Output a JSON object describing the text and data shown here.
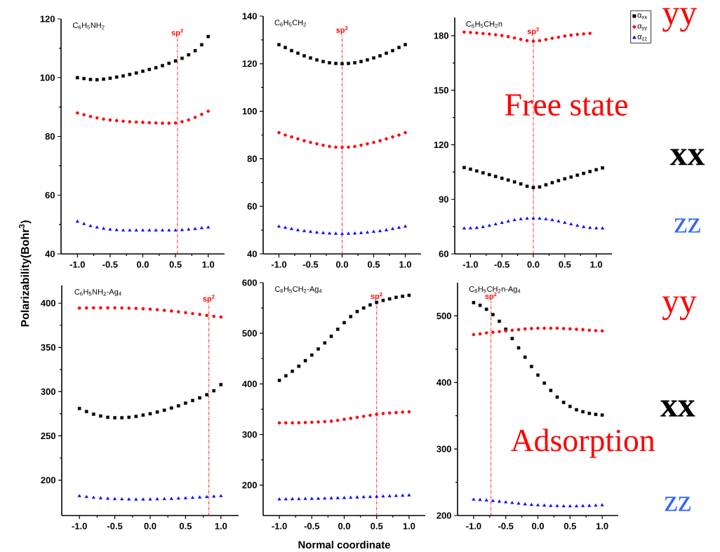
{
  "chart_data": [
    {
      "type": "scatter",
      "title": "C$_{6}$H$_{5}$NH$_{2}$",
      "ylabel": "Polarizability(Bohr$^{3}$)",
      "x": [
        -1.0,
        -0.9,
        -0.8,
        -0.7,
        -0.6,
        -0.5,
        -0.4,
        -0.3,
        -0.2,
        -0.1,
        0.0,
        0.1,
        0.2,
        0.3,
        0.4,
        0.5,
        0.6,
        0.7,
        0.8,
        0.9,
        1.0
      ],
      "series": [
        {
          "color": "#000000",
          "marker": "square",
          "values": [
            100,
            99.7,
            99.4,
            99.3,
            99.5,
            99.8,
            100.2,
            100.6,
            101.1,
            101.6,
            102.2,
            102.8,
            103.4,
            104.1,
            104.9,
            105.7,
            106.6,
            107.8,
            109.2,
            111.2,
            114
          ]
        },
        {
          "color": "#ff0000",
          "marker": "circle",
          "values": [
            88,
            87.4,
            86.8,
            86.3,
            85.9,
            85.6,
            85.4,
            85.2,
            85.0,
            84.9,
            84.8,
            84.7,
            84.6,
            84.5,
            84.5,
            84.6,
            85.0,
            85.6,
            86.5,
            87.5,
            88.6
          ]
        },
        {
          "color": "#0000ff",
          "marker": "triangle",
          "values": [
            51,
            50.2,
            49.5,
            49,
            48.6,
            48.3,
            48.1,
            48,
            48,
            48,
            48,
            48,
            48,
            48,
            48,
            48,
            48.1,
            48.3,
            48.5,
            48.8,
            49
          ]
        }
      ],
      "xlim": [
        -1.25,
        1.25
      ],
      "ylim": [
        40,
        120
      ],
      "xticks": [
        {
          "value": -1,
          "label": "-1.0"
        },
        {
          "value": -0.5,
          "label": "-0.5"
        },
        {
          "value": 0,
          "label": "0.0"
        },
        {
          "value": 0.5,
          "label": "0.5"
        },
        {
          "value": 1,
          "label": "1.0"
        }
      ],
      "yticks": [
        40,
        60,
        80,
        100,
        120
      ],
      "ref_lines": [
        {
          "axis": "x",
          "value": 0.53,
          "label": "sp$^{2}$",
          "color": "#ff0000",
          "line_style": "dashed"
        }
      ]
    },
    {
      "type": "scatter",
      "title": "C$_{6}$H$_{5}$CH$_{2}$",
      "x": [
        -1.0,
        -0.9,
        -0.8,
        -0.7,
        -0.6,
        -0.5,
        -0.4,
        -0.3,
        -0.2,
        -0.1,
        0.0,
        0.1,
        0.2,
        0.3,
        0.4,
        0.5,
        0.6,
        0.7,
        0.8,
        0.9,
        1.0
      ],
      "series": [
        {
          "color": "#000000",
          "marker": "square",
          "values": [
            128,
            126.8,
            125.5,
            124.4,
            123.3,
            122.4,
            121.6,
            120.9,
            120.4,
            120.1,
            120,
            120.1,
            120.4,
            120.9,
            121.6,
            122.4,
            123.3,
            124.4,
            125.5,
            126.8,
            128
          ]
        },
        {
          "color": "#ff0000",
          "marker": "circle",
          "values": [
            91,
            90,
            89.2,
            88.4,
            87.6,
            86.9,
            86.3,
            85.7,
            85.2,
            84.9,
            84.8,
            84.9,
            85.2,
            85.7,
            86.3,
            86.9,
            87.6,
            88.4,
            89.2,
            90,
            91
          ]
        },
        {
          "color": "#0000ff",
          "marker": "triangle",
          "values": [
            51.5,
            51,
            50.5,
            50,
            49.6,
            49.3,
            49,
            48.8,
            48.6,
            48.5,
            48.4,
            48.5,
            48.6,
            48.8,
            49,
            49.3,
            49.6,
            50,
            50.5,
            51,
            51.5
          ]
        }
      ],
      "xlim": [
        -1.25,
        1.25
      ],
      "ylim": [
        40,
        140
      ],
      "xticks": [
        {
          "value": -1,
          "label": "-1.0"
        },
        {
          "value": -0.5,
          "label": "-0.5"
        },
        {
          "value": 0,
          "label": "0.0"
        },
        {
          "value": 0.5,
          "label": "0.5"
        },
        {
          "value": 1,
          "label": "1.0"
        }
      ],
      "yticks": [
        40,
        60,
        80,
        100,
        120,
        140
      ],
      "ref_lines": [
        {
          "axis": "x",
          "value": 0,
          "label": "sp$^{2}$",
          "color": "#ff0000",
          "line_style": "dashed"
        }
      ]
    },
    {
      "type": "scatter",
      "title": "C$_{6}$H$_{5}$CH$_{2}$n",
      "legend": "top right",
      "annotations": [
        "Free state",
        "yy",
        "xx",
        "zz"
      ],
      "x": [
        -1.1,
        -1.0,
        -0.9,
        -0.8,
        -0.7,
        -0.6,
        -0.5,
        -0.4,
        -0.3,
        -0.2,
        -0.1,
        0.0,
        0.1,
        0.2,
        0.3,
        0.4,
        0.5,
        0.6,
        0.7,
        0.8,
        0.9,
        1.0,
        1.1
      ],
      "series": [
        {
          "name": "α$_{xx}$",
          "color": "#000000",
          "marker": "square",
          "values": [
            107.5,
            106.6,
            105.6,
            104.6,
            103.6,
            102.6,
            101.6,
            100.6,
            99.6,
            98.5,
            97.2,
            96.5,
            96.8,
            98,
            99.2,
            100.3,
            101.3,
            102.3,
            103.3,
            104.3,
            105.3,
            106.3,
            107.3
          ]
        },
        {
          "name": "α$_{yy}$",
          "color": "#ff0000",
          "marker": "circle",
          "values": [
            182,
            181.8,
            181.5,
            181.2,
            180.9,
            180.5,
            180.1,
            179.5,
            178.8,
            178,
            177.3,
            177,
            177.3,
            177.9,
            178.6,
            179.2,
            179.8,
            180.3,
            180.7,
            181,
            181.3,
            null,
            null
          ]
        },
        {
          "name": "α$_{zz}$",
          "color": "#0000ff",
          "marker": "triangle",
          "values": [
            74,
            74.1,
            74.3,
            74.8,
            75.5,
            76.3,
            77.1,
            77.9,
            78.6,
            79.1,
            79.4,
            79.5,
            79.4,
            79.1,
            78.6,
            77.9,
            77.1,
            76.3,
            75.5,
            74.8,
            74.3,
            74.1,
            74
          ]
        }
      ],
      "xlim": [
        -1.25,
        1.25
      ],
      "ylim": [
        60,
        190
      ],
      "xticks": [
        {
          "value": -1,
          "label": "-1.0"
        },
        {
          "value": -0.5,
          "label": "-0.5"
        },
        {
          "value": 0,
          "label": "0.0"
        },
        {
          "value": 0.5,
          "label": "0.5"
        },
        {
          "value": 1,
          "label": "1.0"
        }
      ],
      "yticks": [
        60,
        90,
        120,
        150,
        180
      ],
      "ref_lines": [
        {
          "axis": "x",
          "value": 0,
          "label": "sp$^{2}$",
          "color": "#ff0000",
          "line_style": "dashed"
        }
      ]
    },
    {
      "type": "scatter",
      "title": "C$_{6}$H$_{5}$NH$_{2}$-Ag$_{4}$",
      "x": [
        -1.0,
        -0.9,
        -0.8,
        -0.7,
        -0.6,
        -0.5,
        -0.4,
        -0.3,
        -0.2,
        -0.1,
        0.0,
        0.1,
        0.2,
        0.3,
        0.4,
        0.5,
        0.6,
        0.7,
        0.8,
        0.9,
        1.0
      ],
      "series": [
        {
          "color": "#000000",
          "marker": "square",
          "values": [
            281,
            277.5,
            274.5,
            272.5,
            271,
            270.5,
            270.5,
            271,
            272,
            273.5,
            275,
            277,
            279,
            281.5,
            284,
            287,
            290,
            293,
            296.5,
            301,
            308
          ]
        },
        {
          "color": "#ff0000",
          "marker": "circle",
          "values": [
            394.5,
            394.6,
            394.7,
            394.7,
            394.7,
            394.7,
            394.6,
            394.4,
            394.1,
            393.7,
            393.2,
            392.6,
            391.9,
            391.1,
            390.2,
            389.3,
            388.3,
            387.3,
            386.2,
            385.2,
            384.3
          ]
        },
        {
          "color": "#0000ff",
          "marker": "triangle",
          "values": [
            182,
            181,
            180.2,
            179.6,
            179.1,
            178.7,
            178.4,
            178.2,
            178.1,
            178.1,
            178.2,
            178.4,
            178.6,
            178.9,
            179.2,
            179.6,
            180,
            180.5,
            181,
            181.5,
            182
          ]
        }
      ],
      "xlim": [
        -1.25,
        1.25
      ],
      "ylim": [
        160,
        420
      ],
      "xticks": [
        {
          "value": -1,
          "label": "-1.0"
        },
        {
          "value": -0.5,
          "label": "-0.5"
        },
        {
          "value": 0,
          "label": "0.0"
        },
        {
          "value": 0.5,
          "label": "0.5"
        },
        {
          "value": 1,
          "label": "1.0"
        }
      ],
      "yticks": [
        200,
        250,
        300,
        350,
        400
      ],
      "ref_lines": [
        {
          "axis": "x",
          "value": 0.83,
          "label": "sp$^{2}$",
          "color": "#ff0000",
          "line_style": "dashed"
        }
      ]
    },
    {
      "type": "scatter",
      "title": "C$_{6}$H$_{5}$CH$_{2}$-Ag$_{4}$",
      "xlabel": "Normal coordinate",
      "x": [
        -1.0,
        -0.9,
        -0.8,
        -0.7,
        -0.6,
        -0.5,
        -0.4,
        -0.3,
        -0.2,
        -0.1,
        0.0,
        0.1,
        0.2,
        0.3,
        0.4,
        0.5,
        0.6,
        0.7,
        0.8,
        0.9,
        1.0
      ],
      "series": [
        {
          "color": "#000000",
          "marker": "square",
          "values": [
            407,
            416,
            425,
            435,
            446,
            457,
            469,
            481,
            494,
            508,
            521,
            533,
            543,
            550,
            556,
            561,
            565,
            568,
            571,
            573,
            575
          ]
        },
        {
          "color": "#ff0000",
          "marker": "circle",
          "values": [
            323,
            323,
            323,
            323.3,
            323.7,
            324.2,
            324.8,
            325.5,
            326.5,
            328,
            330,
            332,
            334,
            336,
            338,
            340,
            341.5,
            342.5,
            343.5,
            344.2,
            345
          ]
        },
        {
          "color": "#0000ff",
          "marker": "triangle",
          "values": [
            172,
            172.2,
            172.4,
            172.6,
            172.8,
            173,
            173.3,
            173.6,
            174,
            174.4,
            174.8,
            175.3,
            175.8,
            176.3,
            176.8,
            177.3,
            177.8,
            178.3,
            178.8,
            179.3,
            180
          ]
        }
      ],
      "xlim": [
        -1.25,
        1.25
      ],
      "ylim": [
        140,
        600
      ],
      "xticks": [
        {
          "value": -1,
          "label": "-1.0"
        },
        {
          "value": -0.5,
          "label": "-0.5"
        },
        {
          "value": 0,
          "label": "0.0"
        },
        {
          "value": 0.5,
          "label": "0.5"
        },
        {
          "value": 1,
          "label": "1.0"
        }
      ],
      "yticks": [
        200,
        300,
        400,
        500,
        600
      ],
      "ref_lines": [
        {
          "axis": "x",
          "value": 0.5,
          "label": "sp$^{2}$",
          "color": "#ff0000",
          "line_style": "dashed"
        }
      ]
    },
    {
      "type": "scatter",
      "title": "C$_{6}$H$_{5}$CH$_{2}$n-Ag$_{4}$",
      "annotations": [
        "yy",
        "xx",
        "Adsorption",
        "zz"
      ],
      "x": [
        -1.0,
        -0.9,
        -0.8,
        -0.7,
        -0.6,
        -0.5,
        -0.4,
        -0.3,
        -0.2,
        -0.1,
        0.0,
        0.1,
        0.2,
        0.3,
        0.4,
        0.5,
        0.6,
        0.7,
        0.8,
        0.9,
        1.0
      ],
      "series": [
        {
          "color": "#000000",
          "marker": "square",
          "values": [
            520,
            516,
            510,
            502,
            492,
            480,
            466,
            452,
            438,
            424,
            411,
            399,
            388,
            378,
            370,
            364,
            359,
            356,
            353.5,
            352,
            351
          ]
        },
        {
          "color": "#ff0000",
          "marker": "circle",
          "values": [
            472,
            473,
            474.5,
            475.5,
            476.5,
            477.5,
            478.5,
            479.5,
            480.5,
            481,
            481.5,
            481.5,
            481.5,
            481.5,
            481,
            480.5,
            480,
            479.5,
            478.5,
            478,
            477.5
          ]
        },
        {
          "color": "#0000ff",
          "marker": "triangle",
          "values": [
            224,
            223.5,
            222.8,
            222,
            221,
            220,
            219,
            218,
            217,
            216,
            215.5,
            215,
            214.5,
            214.2,
            214,
            214,
            214,
            214.2,
            214.6,
            215,
            215.5
          ]
        }
      ],
      "xlim": [
        -1.25,
        1.25
      ],
      "ylim": [
        200,
        550
      ],
      "xticks": [
        {
          "value": -1,
          "label": "-1.0"
        },
        {
          "value": -0.5,
          "label": "-0.5"
        },
        {
          "value": 0,
          "label": "0.0"
        },
        {
          "value": 0.5,
          "label": "0.5"
        },
        {
          "value": 1,
          "label": "1.0"
        }
      ],
      "yticks": [
        200,
        300,
        400,
        500
      ],
      "ref_lines": [
        {
          "axis": "x",
          "value": -0.73,
          "label": "sp$^{2}$",
          "color": "#ff0000",
          "line_style": "dashed"
        }
      ]
    }
  ]
}
